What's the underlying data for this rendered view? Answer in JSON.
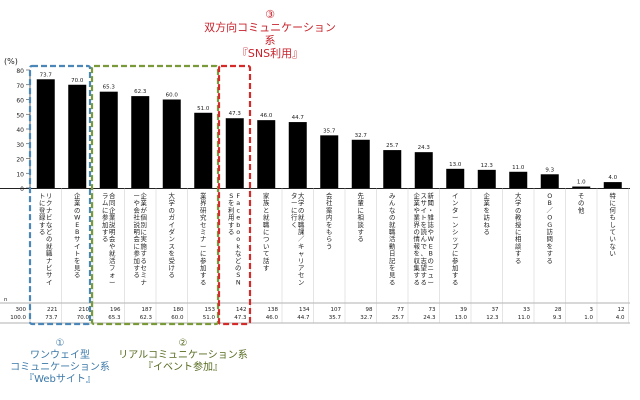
{
  "annotations": {
    "sns": {
      "num": "③",
      "title": "双方向コミュニケーション系",
      "sub": "『SNS利用』"
    },
    "web": {
      "num": "①",
      "title1": "ワンウェイ型",
      "title2": "コミュニケーション系",
      "sub": "『Webサイト』"
    },
    "event": {
      "num": "②",
      "title": "リアルコミュニケーション系",
      "sub": "『イベント参加』"
    }
  },
  "colors": {
    "bar": "#000000",
    "web_box": "#4a86b8",
    "event_box": "#7a9a3a",
    "sns_box": "#d42a2a"
  },
  "chart_data": {
    "type": "bar",
    "ylabel": "(%)",
    "ylim": [
      0,
      80
    ],
    "yticks": [
      "0",
      "10",
      "20",
      "30",
      "40",
      "50",
      "60",
      "70",
      "80"
    ],
    "n_label": "n",
    "total": {
      "n": "300",
      "pct": "100.0"
    },
    "categories": [
      "リクナビなどの就職ナビサイトに登録する",
      "企業のWEBサイトを見る",
      "合同企業説明会や就活フォーラムに参加する",
      "企業が個別に実施するセミナーや会社説明会に参加する",
      "大学のガイダンスを受ける",
      "業界研究セミナーに参加する",
      "FacebookなどのSNSを利用する",
      "家族と就職について話す",
      "大学の就職課／キャリアセンターに行く",
      "会社案内をもらう",
      "先輩に相談する",
      "みんなの就職活動日記を見る",
      "新聞・雑誌やWEBのニュースサイトを読んで、志望する企業や業界の情報を収集する",
      "インターンシップに参加する",
      "企業を訪ねる",
      "大学の教授に相談する",
      "OB／OG訪問をする",
      "その他",
      "特に何もしていない"
    ],
    "values": [
      73.7,
      70.0,
      65.3,
      62.3,
      60.0,
      51.0,
      47.3,
      46.0,
      44.7,
      35.7,
      32.7,
      25.7,
      24.3,
      13.0,
      12.3,
      11.0,
      9.3,
      1.0,
      4.0
    ],
    "value_labels": [
      "73.7",
      "70.0",
      "65.3",
      "62.3",
      "60.0",
      "51.0",
      "47.3",
      "46.0",
      "44.7",
      "35.7",
      "32.7",
      "25.7",
      "24.3",
      "13.0",
      "12.3",
      "11.0",
      "9.3",
      "1.0",
      "4.0"
    ],
    "n": [
      "221",
      "210",
      "196",
      "187",
      "180",
      "153",
      "142",
      "138",
      "134",
      "107",
      "98",
      "77",
      "73",
      "39",
      "37",
      "33",
      "28",
      "3",
      "12"
    ],
    "pct": [
      "73.7",
      "70.0",
      "65.3",
      "62.3",
      "60.0",
      "51.0",
      "47.3",
      "46.0",
      "44.7",
      "35.7",
      "32.7",
      "25.7",
      "24.3",
      "13.0",
      "12.3",
      "11.0",
      "9.3",
      "1.0",
      "4.0"
    ]
  }
}
